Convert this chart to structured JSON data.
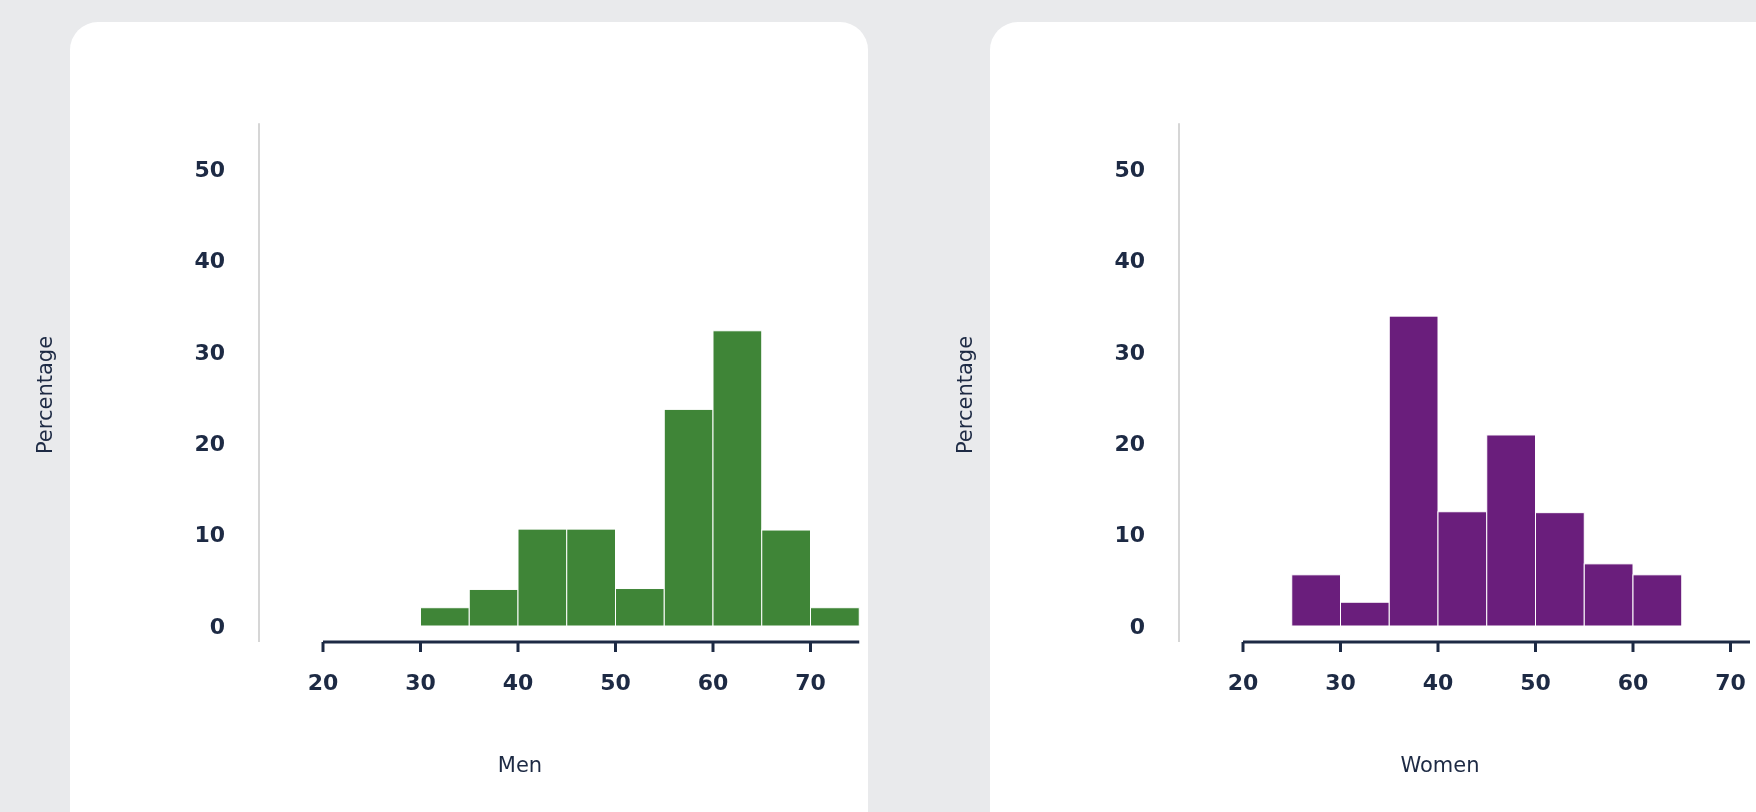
{
  "chart_data": [
    {
      "type": "histogram",
      "xlabel": "Men",
      "ylabel": "Percentage",
      "bins": [
        30,
        35,
        40,
        45,
        50,
        55,
        60,
        65,
        70,
        75
      ],
      "values": [
        2,
        4,
        10.6,
        10.6,
        4.1,
        23.7,
        32.3,
        10.5,
        2
      ],
      "color": "#3f8537",
      "xlim": [
        20,
        75
      ],
      "xticks": [
        20,
        30,
        40,
        50,
        60,
        70
      ],
      "ylim": [
        0,
        55
      ],
      "yticks": [
        0,
        10,
        20,
        30,
        40,
        50
      ],
      "grid": false
    },
    {
      "type": "histogram",
      "xlabel": "Women",
      "ylabel": "Percentage",
      "bins": [
        25,
        30,
        35,
        40,
        45,
        50,
        55,
        60,
        65
      ],
      "values": [
        5.6,
        2.6,
        33.9,
        12.5,
        20.9,
        12.4,
        6.8,
        5.6
      ],
      "color": "#6a1e7c",
      "xlim": [
        20,
        72
      ],
      "xticks": [
        20,
        30,
        40,
        50,
        60,
        70
      ],
      "ylim": [
        0,
        55
      ],
      "yticks": [
        0,
        10,
        20,
        30,
        40,
        50
      ],
      "grid": false
    }
  ]
}
